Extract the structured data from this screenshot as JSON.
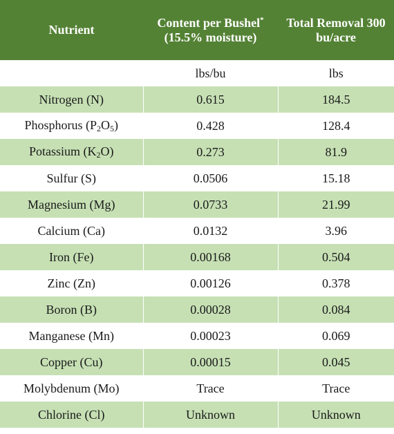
{
  "headers": {
    "nutrient": "Nutrient",
    "content_pre": "Content per Bushel",
    "content_sup": "*",
    "content_post": " (15.5% moisture)",
    "removal": "Total Removal 300 bu/acre"
  },
  "units": {
    "nutrient": "",
    "content": "lbs/bu",
    "removal": "lbs"
  },
  "rows": [
    {
      "nutrient": "Nitrogen (N)",
      "content": "0.615",
      "removal": "184.5"
    },
    {
      "nutrient_pre": "Phosphorus (P",
      "nutrient_sub1": "2",
      "nutrient_mid": "O",
      "nutrient_sub2": "5",
      "nutrient_post": ")",
      "content": "0.428",
      "removal": "128.4"
    },
    {
      "nutrient_pre": "Potassium (K",
      "nutrient_sub1": "2",
      "nutrient_post": "O)",
      "content": "0.273",
      "removal": "81.9"
    },
    {
      "nutrient": "Sulfur (S)",
      "content": "0.0506",
      "removal": "15.18"
    },
    {
      "nutrient": "Magnesium (Mg)",
      "content": "0.0733",
      "removal": "21.99"
    },
    {
      "nutrient": "Calcium (Ca)",
      "content": "0.0132",
      "removal": "3.96"
    },
    {
      "nutrient": "Iron (Fe)",
      "content": "0.00168",
      "removal": "0.504"
    },
    {
      "nutrient": "Zinc (Zn)",
      "content": "0.00126",
      "removal": "0.378"
    },
    {
      "nutrient": "Boron (B)",
      "content": "0.00028",
      "removal": "0.084"
    },
    {
      "nutrient": "Manganese (Mn)",
      "content": "0.00023",
      "removal": "0.069"
    },
    {
      "nutrient": "Copper (Cu)",
      "content": "0.00015",
      "removal": "0.045"
    },
    {
      "nutrient": "Molybdenum (Mo)",
      "content": "Trace",
      "removal": "Trace"
    },
    {
      "nutrient": "Chlorine (Cl)",
      "content": "Unknown",
      "removal": "Unknown"
    }
  ],
  "colors": {
    "header_bg": "#548235",
    "stripe_bg": "#c6e0b4",
    "plain_bg": "#ffffff"
  }
}
